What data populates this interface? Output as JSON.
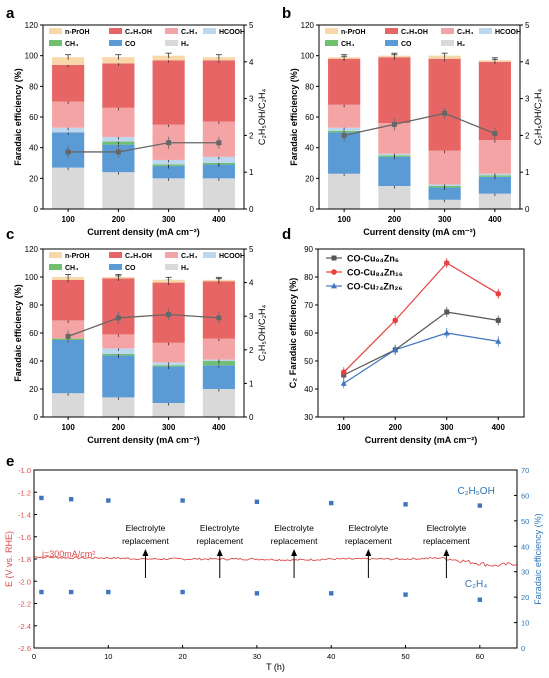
{
  "figure": {
    "colors": {
      "h2": "#d9d9d9",
      "co": "#5b9bd5",
      "ch4": "#70c070",
      "c2h4": "#f4a4a4",
      "c2h5oh": "#e86565",
      "hcooh": "#bdd7ee",
      "nproh": "#f8d7a8",
      "ratio": "#666666",
      "cu94": "#555555",
      "cu84": "#e84040",
      "cu74": "#3f74c0",
      "e_line": "#e04b4b",
      "fe_points": "#3f74c0",
      "fe_axis": "#2e75b6",
      "e_axis": "#e04b4b"
    }
  },
  "chart_data": [
    {
      "panel": "a",
      "type": "bar",
      "stacked": true,
      "categories": [
        "100",
        "200",
        "300",
        "400"
      ],
      "xlabel": "Current density (mA cm⁻²)",
      "ylabel": "Faradaic efficiency (%)",
      "y2label": "C₂H₅OH/C₂H₄",
      "ylim": [
        0,
        120
      ],
      "yticks": [
        "0",
        "20",
        "40",
        "60",
        "80",
        "100",
        "120"
      ],
      "y2lim": [
        0,
        5
      ],
      "y2ticks": [
        "0",
        "1",
        "2",
        "3",
        "4",
        "5"
      ],
      "legend": [
        {
          "label": "n-PrOH",
          "key": "nproh"
        },
        {
          "label": "C₂H₅OH",
          "key": "c2h5oh"
        },
        {
          "label": "C₂H₄",
          "key": "c2h4"
        },
        {
          "label": "HCOOH",
          "key": "hcooh"
        },
        {
          "label": "CH₄",
          "key": "ch4"
        },
        {
          "label": "CO",
          "key": "co"
        },
        {
          "label": "H₂",
          "key": "h2"
        }
      ],
      "series": [
        {
          "key": "h2",
          "values": [
            27,
            24,
            20,
            20
          ]
        },
        {
          "key": "co",
          "values": [
            23,
            18,
            8,
            9
          ]
        },
        {
          "key": "ch4",
          "values": [
            0,
            2,
            1,
            1
          ]
        },
        {
          "key": "hcooh",
          "values": [
            3,
            3,
            3,
            4
          ]
        },
        {
          "key": "c2h4",
          "values": [
            17,
            19,
            23,
            23
          ]
        },
        {
          "key": "c2h5oh",
          "values": [
            24,
            29,
            42,
            40
          ]
        },
        {
          "key": "nproh",
          "values": [
            5,
            4,
            3,
            2
          ]
        }
      ],
      "ratio": [
        1.55,
        1.55,
        1.8,
        1.8
      ]
    },
    {
      "panel": "b",
      "type": "bar",
      "stacked": true,
      "categories": [
        "100",
        "200",
        "300",
        "400"
      ],
      "xlabel": "Current density (mA cm⁻²)",
      "ylabel": "Faradaic efficiency (%)",
      "y2label": "C₂H₅OH/C₂H₄",
      "ylim": [
        0,
        120
      ],
      "yticks": [
        "0",
        "20",
        "40",
        "60",
        "80",
        "100",
        "120"
      ],
      "y2lim": [
        0,
        5
      ],
      "y2ticks": [
        "0",
        "1",
        "2",
        "3",
        "4",
        "5"
      ],
      "legend": [
        {
          "label": "n-PrOH",
          "key": "nproh"
        },
        {
          "label": "C₂H₅OH",
          "key": "c2h5oh"
        },
        {
          "label": "C₂H₄",
          "key": "c2h4"
        },
        {
          "label": "HCOOH",
          "key": "hcooh"
        },
        {
          "label": "CH₄",
          "key": "ch4"
        },
        {
          "label": "CO",
          "key": "co"
        },
        {
          "label": "H₂",
          "key": "h2"
        }
      ],
      "series": [
        {
          "key": "h2",
          "values": [
            23,
            15,
            6,
            10
          ]
        },
        {
          "key": "co",
          "values": [
            27,
            19,
            8,
            11
          ]
        },
        {
          "key": "ch4",
          "values": [
            1,
            1,
            1,
            1
          ]
        },
        {
          "key": "hcooh",
          "values": [
            2,
            1,
            1,
            1
          ]
        },
        {
          "key": "c2h4",
          "values": [
            15,
            20,
            22,
            22
          ]
        },
        {
          "key": "c2h5oh",
          "values": [
            30,
            43,
            60,
            51
          ]
        },
        {
          "key": "nproh",
          "values": [
            1,
            1,
            2,
            1
          ]
        }
      ],
      "ratio": [
        2.0,
        2.3,
        2.6,
        2.05
      ]
    },
    {
      "panel": "c",
      "type": "bar",
      "stacked": true,
      "categories": [
        "100",
        "200",
        "300",
        "400"
      ],
      "xlabel": "Current density (mA cm⁻²)",
      "ylabel": "Faradaic efficiency (%)",
      "y2label": "C₂H₅OH/C₂H₄",
      "ylim": [
        0,
        120
      ],
      "yticks": [
        "0",
        "20",
        "40",
        "60",
        "80",
        "100",
        "120"
      ],
      "y2lim": [
        0,
        5
      ],
      "y2ticks": [
        "0",
        "1",
        "2",
        "3",
        "4",
        "5"
      ],
      "legend": [
        {
          "label": "n-PrOH",
          "key": "nproh"
        },
        {
          "label": "C₂H₅OH",
          "key": "c2h5oh"
        },
        {
          "label": "C₂H₄",
          "key": "c2h4"
        },
        {
          "label": "HCOOH",
          "key": "hcooh"
        },
        {
          "label": "CH₄",
          "key": "ch4"
        },
        {
          "label": "CO",
          "key": "co"
        },
        {
          "label": "H₂",
          "key": "h2"
        }
      ],
      "series": [
        {
          "key": "h2",
          "values": [
            17,
            14,
            10,
            20
          ]
        },
        {
          "key": "co",
          "values": [
            38,
            30,
            26,
            17
          ]
        },
        {
          "key": "ch4",
          "values": [
            1,
            1,
            1,
            3
          ]
        },
        {
          "key": "hcooh",
          "values": [
            0,
            4,
            2,
            1
          ]
        },
        {
          "key": "c2h4",
          "values": [
            13,
            10,
            14,
            15
          ]
        },
        {
          "key": "c2h5oh",
          "values": [
            29,
            40,
            43,
            41
          ]
        },
        {
          "key": "nproh",
          "values": [
            2,
            1,
            2,
            1
          ]
        }
      ],
      "ratio": [
        2.4,
        2.95,
        3.05,
        2.95
      ]
    },
    {
      "panel": "d",
      "type": "line",
      "x": [
        100,
        200,
        300,
        400
      ],
      "xlabel": "Current density (mA cm⁻²)",
      "ylabel": "C₂ Faradaic efficiency (%)",
      "xlim": [
        50,
        450
      ],
      "xticks": [
        "100",
        "200",
        "300",
        "400"
      ],
      "ylim": [
        30,
        90
      ],
      "yticks": [
        "30",
        "40",
        "50",
        "60",
        "70",
        "80",
        "90"
      ],
      "series": [
        {
          "name": "CO-Cu₉₄Zn₆",
          "key": "cu94",
          "marker": "square",
          "values": [
            45,
            54,
            67.5,
            64.5
          ]
        },
        {
          "name": "CO-Cu₈₄Zn₁₆",
          "key": "cu84",
          "marker": "circle",
          "values": [
            46,
            64.5,
            85,
            74
          ]
        },
        {
          "name": "CO-Cu₇₄Zn₂₆",
          "key": "cu74",
          "marker": "triangle",
          "values": [
            42,
            54,
            60,
            57
          ]
        }
      ]
    },
    {
      "panel": "e",
      "type": "line",
      "x_range": [
        0,
        65
      ],
      "xlabel": "T (h)",
      "xticks": [
        "0",
        "10",
        "20",
        "30",
        "40",
        "50",
        "60"
      ],
      "ylabel": "E (V vs. RHE)",
      "ylim": [
        -2.6,
        -1.0
      ],
      "yticks": [
        "-1.0",
        "-1.2",
        "-1.4",
        "-1.6",
        "-1.8",
        "-2.0",
        "-2.2",
        "-2.4",
        "-2.6"
      ],
      "y2label": "Faradaic efficiency (%)",
      "y2lim": [
        0,
        70
      ],
      "y2ticks": [
        "0",
        "10",
        "20",
        "30",
        "40",
        "50",
        "60",
        "70"
      ],
      "potential": {
        "t": [
          0,
          5,
          10,
          15,
          20,
          25,
          30,
          35,
          40,
          45,
          50,
          55,
          58,
          60,
          62,
          65
        ],
        "e": [
          -1.78,
          -1.79,
          -1.79,
          -1.8,
          -1.8,
          -1.8,
          -1.8,
          -1.81,
          -1.8,
          -1.8,
          -1.8,
          -1.79,
          -1.82,
          -1.84,
          -1.86,
          -1.84
        ]
      },
      "fe_c2h5oh": {
        "name": "C₂H₅OH",
        "t": [
          1,
          5,
          10,
          20,
          30,
          40,
          50,
          60
        ],
        "values": [
          59,
          58.5,
          58,
          58,
          57.5,
          57,
          56.5,
          56
        ]
      },
      "fe_c2h4": {
        "name": "C₂H₄",
        "t": [
          1,
          5,
          10,
          20,
          30,
          40,
          50,
          60
        ],
        "values": [
          22,
          22,
          22,
          22,
          21.5,
          21.5,
          21,
          19
        ]
      },
      "condition_label": "j=300mA/cm²",
      "annotations": [
        {
          "t": 15,
          "line1": "Electrolyte",
          "line2": "replacement"
        },
        {
          "t": 25,
          "line1": "Electrolyte",
          "line2": "replacement"
        },
        {
          "t": 35,
          "line1": "Electrolyte",
          "line2": "replacement"
        },
        {
          "t": 45,
          "line1": "Electrolyte",
          "line2": "replacement"
        },
        {
          "t": 55.5,
          "line1": "Electrolyte",
          "line2": "replacement"
        }
      ]
    }
  ],
  "panels": {
    "a": {
      "label": "a"
    },
    "b": {
      "label": "b"
    },
    "c": {
      "label": "c"
    },
    "d": {
      "label": "d"
    },
    "e": {
      "label": "e"
    }
  }
}
